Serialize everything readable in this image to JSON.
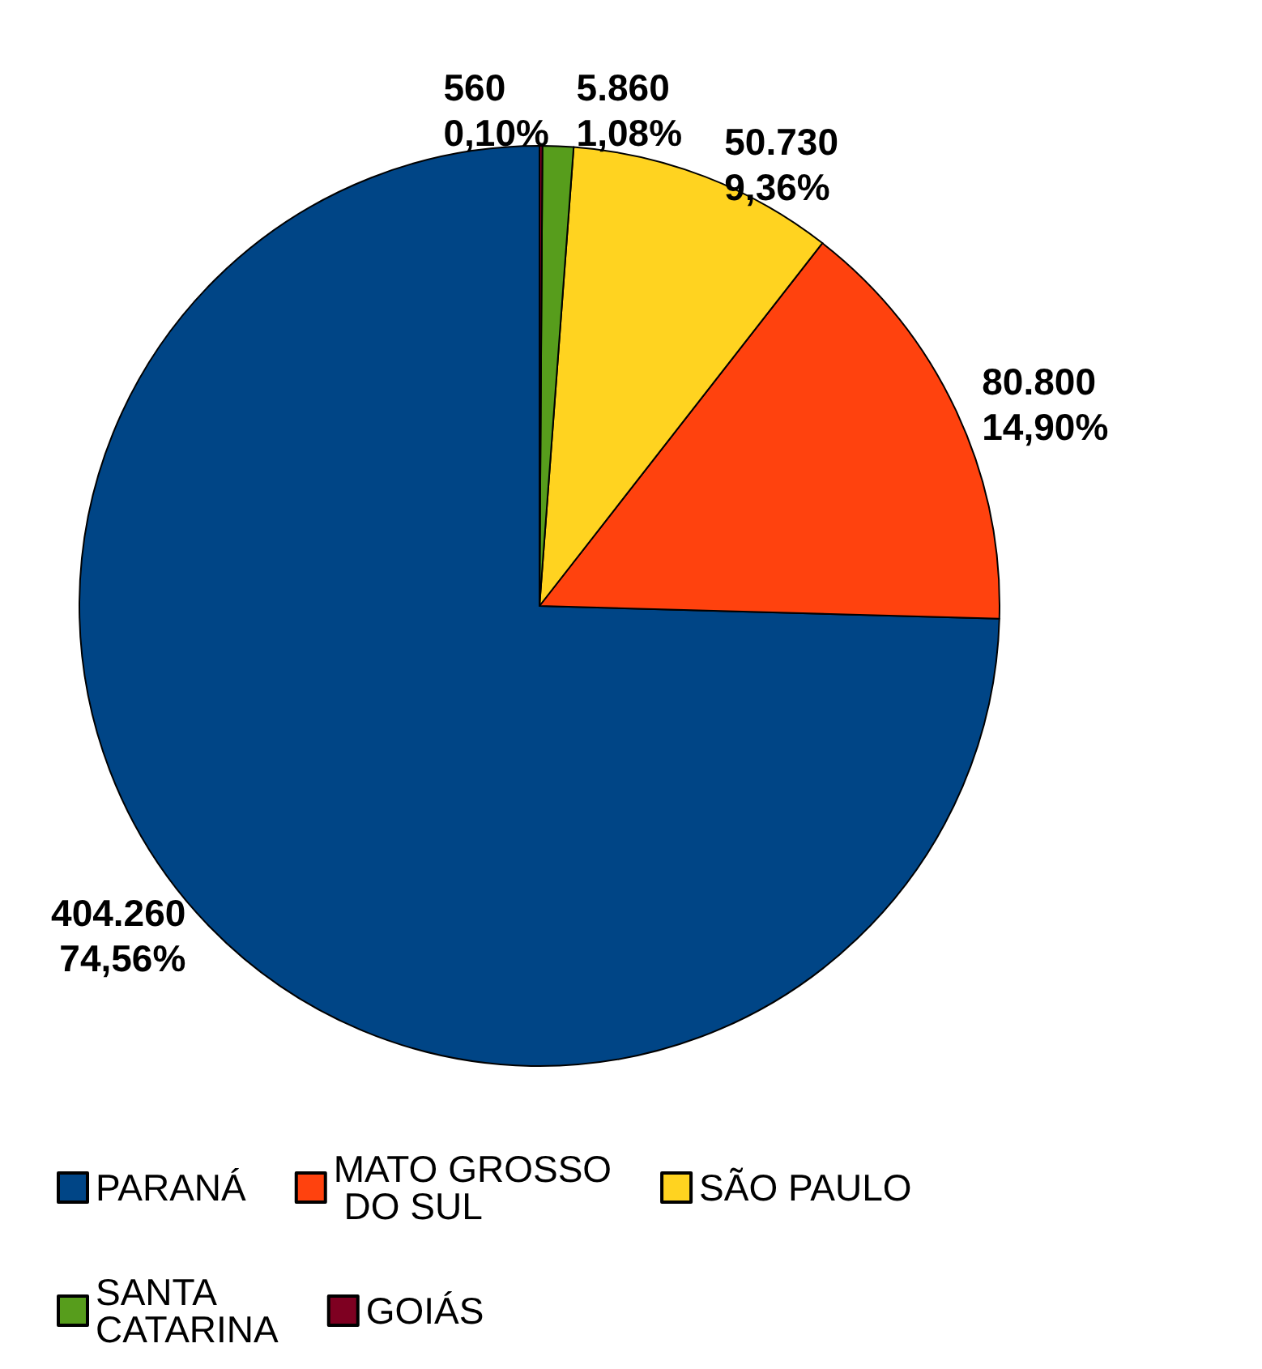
{
  "chart_data": {
    "type": "pie",
    "categories": [
      "PARANÁ",
      "MATO GROSSO DO SUL",
      "SÃO PAULO",
      "SANTA CATARINA",
      "GOIÁS"
    ],
    "values": [
      404260,
      80800,
      50730,
      5860,
      560
    ],
    "value_labels": [
      "404.260\n74,56%",
      "80.800\n14,90%",
      "50.730\n9,36%",
      "5.860\n1,08%",
      "560\n0,10%"
    ],
    "colors": [
      "#004586",
      "#ff420e",
      "#ffd320",
      "#579d1c",
      "#7e0021"
    ],
    "legend": "bottom"
  }
}
